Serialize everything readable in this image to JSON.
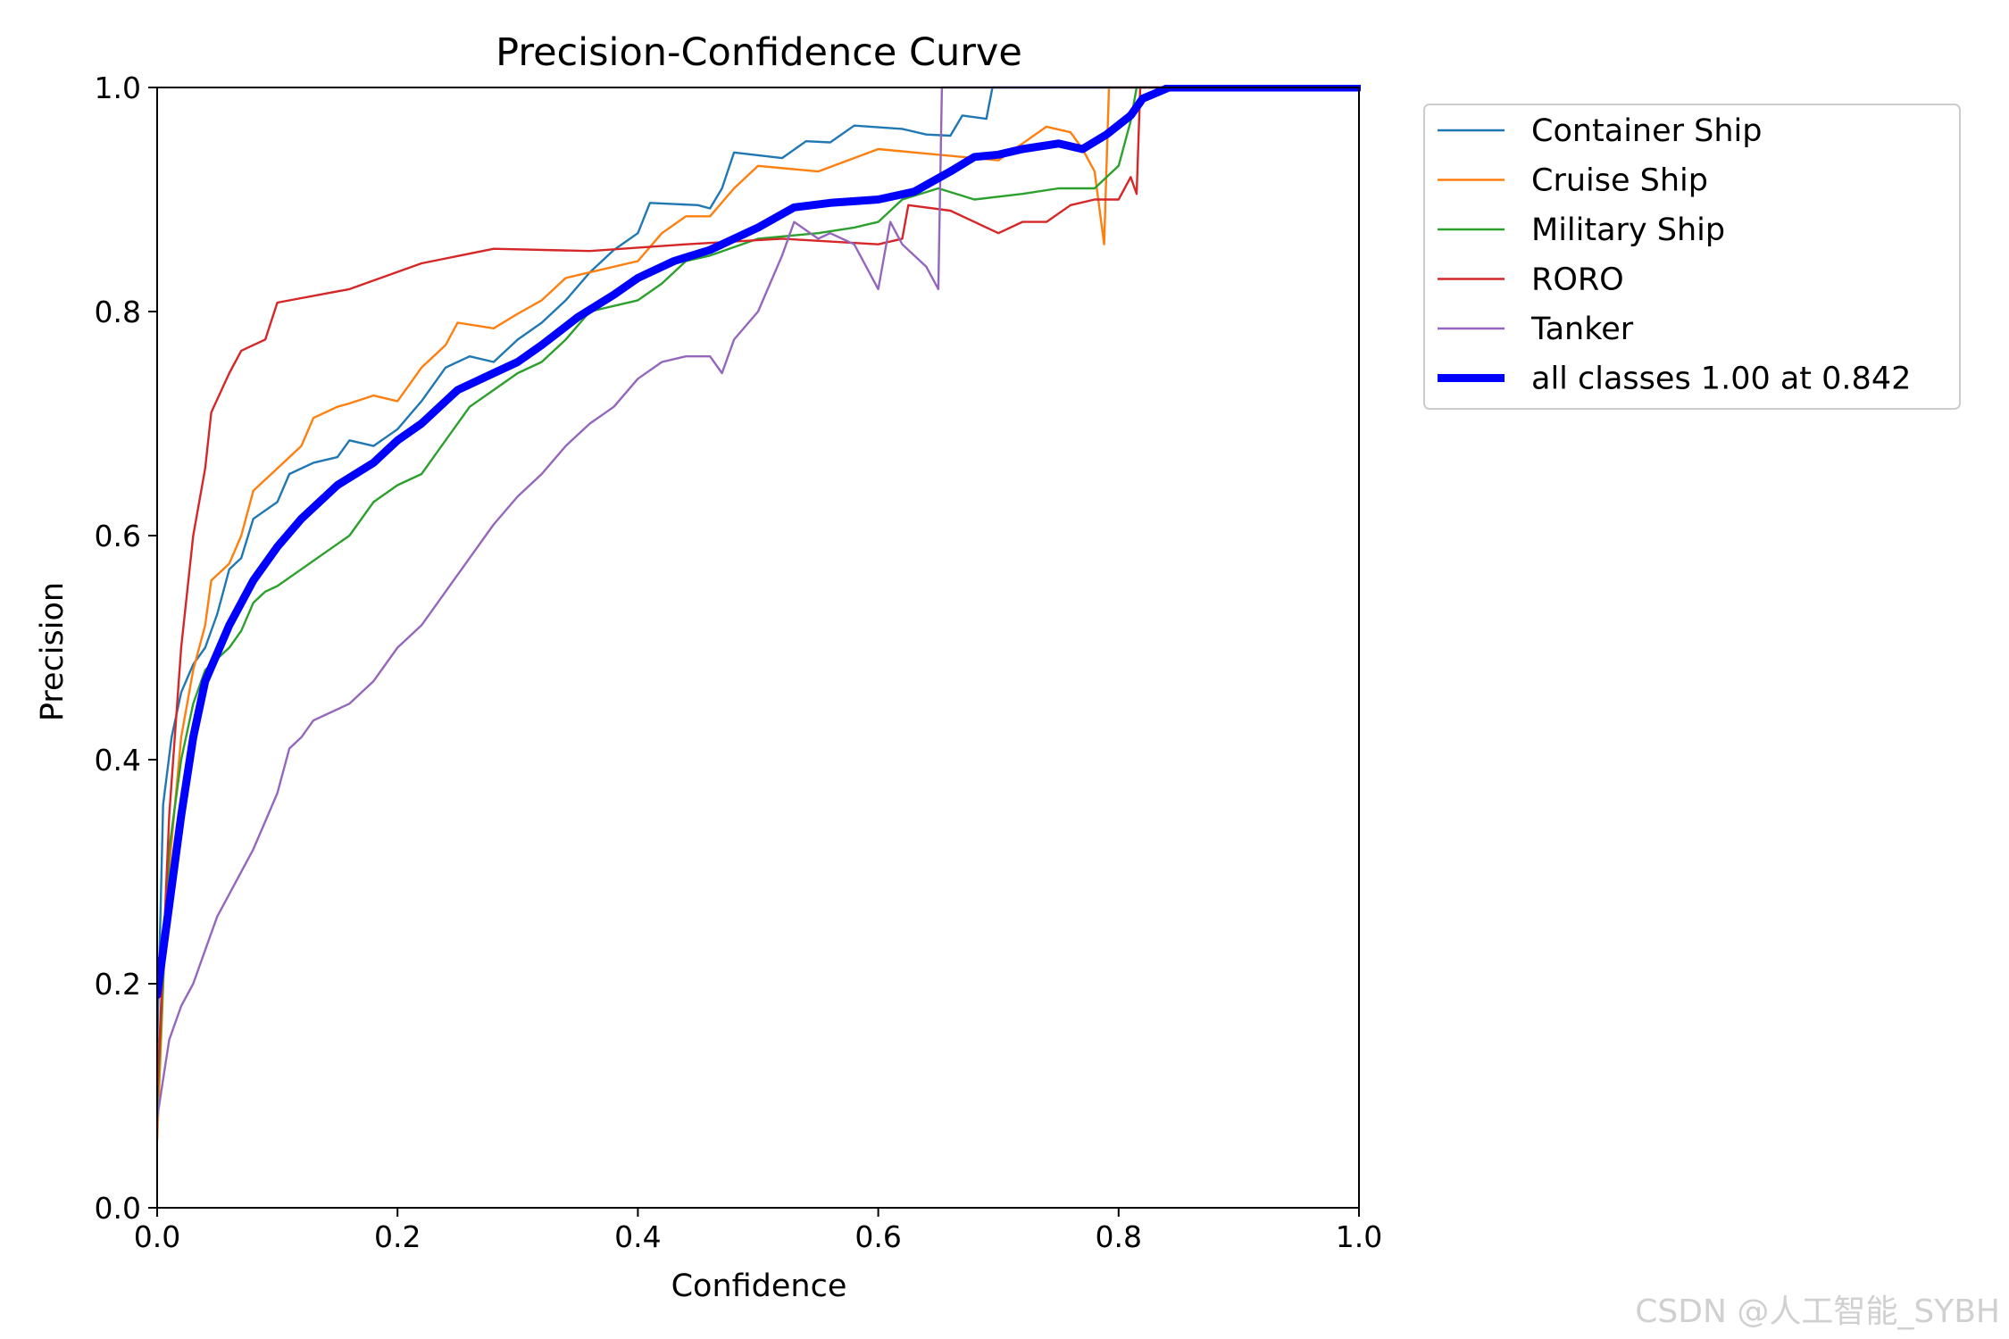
{
  "chart_data": {
    "type": "line",
    "title": "Precision-Confidence Curve",
    "xlabel": "Confidence",
    "ylabel": "Precision",
    "xlim": [
      0,
      1
    ],
    "ylim": [
      0,
      1
    ],
    "xticks": [
      "0.0",
      "0.2",
      "0.4",
      "0.6",
      "0.8",
      "1.0"
    ],
    "yticks": [
      "0.0",
      "0.2",
      "0.4",
      "0.6",
      "0.8",
      "1.0"
    ],
    "grid": false,
    "legend_position": "outside-top-right",
    "series": [
      {
        "name": "Container Ship",
        "color": "#1f77b4",
        "width": "thin",
        "points": [
          [
            0.0,
            0.14
          ],
          [
            0.005,
            0.36
          ],
          [
            0.012,
            0.42
          ],
          [
            0.02,
            0.46
          ],
          [
            0.03,
            0.485
          ],
          [
            0.04,
            0.5
          ],
          [
            0.05,
            0.53
          ],
          [
            0.06,
            0.57
          ],
          [
            0.07,
            0.58
          ],
          [
            0.08,
            0.615
          ],
          [
            0.1,
            0.63
          ],
          [
            0.11,
            0.655
          ],
          [
            0.13,
            0.665
          ],
          [
            0.15,
            0.67
          ],
          [
            0.16,
            0.685
          ],
          [
            0.18,
            0.68
          ],
          [
            0.2,
            0.695
          ],
          [
            0.22,
            0.72
          ],
          [
            0.24,
            0.75
          ],
          [
            0.26,
            0.76
          ],
          [
            0.28,
            0.755
          ],
          [
            0.3,
            0.775
          ],
          [
            0.32,
            0.79
          ],
          [
            0.34,
            0.81
          ],
          [
            0.36,
            0.835
          ],
          [
            0.38,
            0.855
          ],
          [
            0.4,
            0.87
          ],
          [
            0.41,
            0.897
          ],
          [
            0.45,
            0.895
          ],
          [
            0.46,
            0.892
          ],
          [
            0.47,
            0.91
          ],
          [
            0.48,
            0.942
          ],
          [
            0.52,
            0.937
          ],
          [
            0.54,
            0.952
          ],
          [
            0.56,
            0.951
          ],
          [
            0.58,
            0.966
          ],
          [
            0.62,
            0.963
          ],
          [
            0.64,
            0.958
          ],
          [
            0.66,
            0.957
          ],
          [
            0.67,
            0.975
          ],
          [
            0.69,
            0.972
          ],
          [
            0.695,
            1.0
          ],
          [
            1.0,
            1.0
          ]
        ]
      },
      {
        "name": "Cruise Ship",
        "color": "#ff7f0e",
        "width": "thin",
        "points": [
          [
            0.0,
            0.06
          ],
          [
            0.008,
            0.28
          ],
          [
            0.02,
            0.42
          ],
          [
            0.03,
            0.48
          ],
          [
            0.04,
            0.52
          ],
          [
            0.045,
            0.56
          ],
          [
            0.06,
            0.575
          ],
          [
            0.07,
            0.6
          ],
          [
            0.08,
            0.64
          ],
          [
            0.09,
            0.65
          ],
          [
            0.1,
            0.66
          ],
          [
            0.12,
            0.68
          ],
          [
            0.13,
            0.705
          ],
          [
            0.15,
            0.715
          ],
          [
            0.16,
            0.718
          ],
          [
            0.18,
            0.725
          ],
          [
            0.2,
            0.72
          ],
          [
            0.22,
            0.75
          ],
          [
            0.24,
            0.77
          ],
          [
            0.25,
            0.79
          ],
          [
            0.28,
            0.785
          ],
          [
            0.3,
            0.798
          ],
          [
            0.32,
            0.81
          ],
          [
            0.34,
            0.83
          ],
          [
            0.36,
            0.835
          ],
          [
            0.4,
            0.845
          ],
          [
            0.42,
            0.87
          ],
          [
            0.44,
            0.885
          ],
          [
            0.46,
            0.885
          ],
          [
            0.48,
            0.91
          ],
          [
            0.5,
            0.93
          ],
          [
            0.55,
            0.925
          ],
          [
            0.6,
            0.945
          ],
          [
            0.65,
            0.94
          ],
          [
            0.7,
            0.935
          ],
          [
            0.72,
            0.95
          ],
          [
            0.74,
            0.965
          ],
          [
            0.76,
            0.96
          ],
          [
            0.77,
            0.945
          ],
          [
            0.78,
            0.925
          ],
          [
            0.788,
            0.86
          ],
          [
            0.792,
            1.0
          ],
          [
            1.0,
            1.0
          ]
        ]
      },
      {
        "name": "Military Ship",
        "color": "#2ca02c",
        "width": "thin",
        "points": [
          [
            0.0,
            0.09
          ],
          [
            0.01,
            0.32
          ],
          [
            0.02,
            0.4
          ],
          [
            0.03,
            0.45
          ],
          [
            0.04,
            0.48
          ],
          [
            0.05,
            0.49
          ],
          [
            0.06,
            0.5
          ],
          [
            0.07,
            0.515
          ],
          [
            0.08,
            0.54
          ],
          [
            0.09,
            0.55
          ],
          [
            0.1,
            0.555
          ],
          [
            0.12,
            0.57
          ],
          [
            0.14,
            0.585
          ],
          [
            0.16,
            0.6
          ],
          [
            0.18,
            0.63
          ],
          [
            0.2,
            0.645
          ],
          [
            0.22,
            0.655
          ],
          [
            0.24,
            0.685
          ],
          [
            0.26,
            0.715
          ],
          [
            0.28,
            0.73
          ],
          [
            0.3,
            0.745
          ],
          [
            0.32,
            0.755
          ],
          [
            0.34,
            0.775
          ],
          [
            0.36,
            0.8
          ],
          [
            0.4,
            0.81
          ],
          [
            0.42,
            0.825
          ],
          [
            0.44,
            0.845
          ],
          [
            0.46,
            0.85
          ],
          [
            0.5,
            0.865
          ],
          [
            0.55,
            0.87
          ],
          [
            0.58,
            0.875
          ],
          [
            0.6,
            0.88
          ],
          [
            0.62,
            0.9
          ],
          [
            0.65,
            0.91
          ],
          [
            0.68,
            0.9
          ],
          [
            0.72,
            0.905
          ],
          [
            0.75,
            0.91
          ],
          [
            0.78,
            0.91
          ],
          [
            0.8,
            0.93
          ],
          [
            0.81,
            0.97
          ],
          [
            0.815,
            1.0
          ],
          [
            1.0,
            1.0
          ]
        ]
      },
      {
        "name": "RORO",
        "color": "#d62728",
        "width": "thin",
        "points": [
          [
            0.0,
            0.1
          ],
          [
            0.01,
            0.35
          ],
          [
            0.02,
            0.5
          ],
          [
            0.03,
            0.6
          ],
          [
            0.04,
            0.66
          ],
          [
            0.045,
            0.71
          ],
          [
            0.06,
            0.745
          ],
          [
            0.07,
            0.765
          ],
          [
            0.08,
            0.77
          ],
          [
            0.09,
            0.775
          ],
          [
            0.1,
            0.808
          ],
          [
            0.16,
            0.82
          ],
          [
            0.22,
            0.843
          ],
          [
            0.28,
            0.856
          ],
          [
            0.36,
            0.854
          ],
          [
            0.44,
            0.86
          ],
          [
            0.52,
            0.865
          ],
          [
            0.6,
            0.86
          ],
          [
            0.62,
            0.865
          ],
          [
            0.625,
            0.895
          ],
          [
            0.66,
            0.89
          ],
          [
            0.68,
            0.88
          ],
          [
            0.7,
            0.87
          ],
          [
            0.72,
            0.88
          ],
          [
            0.74,
            0.88
          ],
          [
            0.76,
            0.895
          ],
          [
            0.78,
            0.9
          ],
          [
            0.8,
            0.9
          ],
          [
            0.81,
            0.92
          ],
          [
            0.815,
            0.905
          ],
          [
            0.818,
            1.0
          ],
          [
            1.0,
            1.0
          ]
        ]
      },
      {
        "name": "Tanker",
        "color": "#9467bd",
        "width": "thin",
        "points": [
          [
            0.0,
            0.08
          ],
          [
            0.01,
            0.15
          ],
          [
            0.02,
            0.18
          ],
          [
            0.03,
            0.2
          ],
          [
            0.04,
            0.23
          ],
          [
            0.05,
            0.26
          ],
          [
            0.06,
            0.28
          ],
          [
            0.08,
            0.32
          ],
          [
            0.1,
            0.37
          ],
          [
            0.11,
            0.41
          ],
          [
            0.12,
            0.42
          ],
          [
            0.13,
            0.435
          ],
          [
            0.14,
            0.44
          ],
          [
            0.16,
            0.45
          ],
          [
            0.18,
            0.47
          ],
          [
            0.2,
            0.5
          ],
          [
            0.22,
            0.52
          ],
          [
            0.24,
            0.55
          ],
          [
            0.26,
            0.58
          ],
          [
            0.28,
            0.61
          ],
          [
            0.3,
            0.635
          ],
          [
            0.32,
            0.655
          ],
          [
            0.34,
            0.68
          ],
          [
            0.36,
            0.7
          ],
          [
            0.38,
            0.715
          ],
          [
            0.4,
            0.74
          ],
          [
            0.42,
            0.755
          ],
          [
            0.44,
            0.76
          ],
          [
            0.46,
            0.76
          ],
          [
            0.47,
            0.745
          ],
          [
            0.48,
            0.775
          ],
          [
            0.5,
            0.8
          ],
          [
            0.52,
            0.85
          ],
          [
            0.53,
            0.88
          ],
          [
            0.55,
            0.865
          ],
          [
            0.56,
            0.87
          ],
          [
            0.58,
            0.86
          ],
          [
            0.6,
            0.82
          ],
          [
            0.61,
            0.88
          ],
          [
            0.62,
            0.86
          ],
          [
            0.64,
            0.84
          ],
          [
            0.65,
            0.82
          ],
          [
            0.653,
            1.0
          ],
          [
            1.0,
            1.0
          ]
        ]
      },
      {
        "name": "all classes 1.00 at 0.842",
        "color": "#0000ff",
        "width": "thick",
        "points": [
          [
            0.0,
            0.19
          ],
          [
            0.01,
            0.27
          ],
          [
            0.02,
            0.35
          ],
          [
            0.03,
            0.42
          ],
          [
            0.04,
            0.47
          ],
          [
            0.06,
            0.52
          ],
          [
            0.08,
            0.56
          ],
          [
            0.1,
            0.59
          ],
          [
            0.12,
            0.615
          ],
          [
            0.15,
            0.645
          ],
          [
            0.18,
            0.665
          ],
          [
            0.2,
            0.685
          ],
          [
            0.22,
            0.7
          ],
          [
            0.25,
            0.73
          ],
          [
            0.28,
            0.745
          ],
          [
            0.3,
            0.755
          ],
          [
            0.32,
            0.77
          ],
          [
            0.35,
            0.795
          ],
          [
            0.38,
            0.815
          ],
          [
            0.4,
            0.83
          ],
          [
            0.43,
            0.845
          ],
          [
            0.46,
            0.855
          ],
          [
            0.48,
            0.865
          ],
          [
            0.5,
            0.875
          ],
          [
            0.53,
            0.893
          ],
          [
            0.56,
            0.897
          ],
          [
            0.6,
            0.9
          ],
          [
            0.63,
            0.907
          ],
          [
            0.66,
            0.925
          ],
          [
            0.68,
            0.938
          ],
          [
            0.7,
            0.94
          ],
          [
            0.72,
            0.945
          ],
          [
            0.75,
            0.95
          ],
          [
            0.77,
            0.945
          ],
          [
            0.79,
            0.958
          ],
          [
            0.81,
            0.975
          ],
          [
            0.82,
            0.99
          ],
          [
            0.842,
            1.0
          ],
          [
            1.0,
            1.0
          ]
        ]
      }
    ]
  },
  "watermark": "CSDN @人工智能_SYBH"
}
